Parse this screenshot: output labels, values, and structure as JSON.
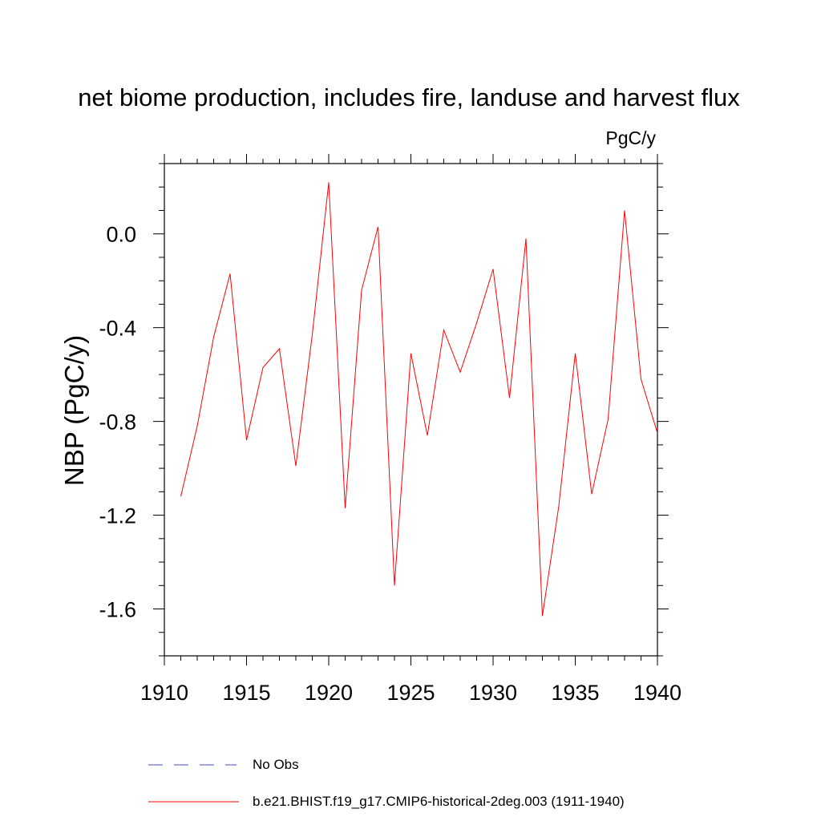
{
  "chart_data": {
    "type": "line",
    "title": "net biome production, includes fire, landuse and harvest flux",
    "units_label": "PgC/y",
    "ylabel": "NBP  (PgC/y)",
    "xlabel": "",
    "xlim": [
      1910,
      1940
    ],
    "ylim": [
      -1.8,
      0.3
    ],
    "x_ticks": [
      1910,
      1915,
      1920,
      1925,
      1930,
      1935,
      1940
    ],
    "x_tick_labels": [
      "1910",
      "1915",
      "1920",
      "1925",
      "1930",
      "1935",
      "1940"
    ],
    "y_ticks": [
      0.0,
      -0.4,
      -0.8,
      -1.2,
      -1.6
    ],
    "y_tick_labels": [
      "0.0",
      "-0.4",
      "-0.8",
      "-1.2",
      "-1.6"
    ],
    "grid": false,
    "legend_position": "bottom",
    "series": [
      {
        "name": "b.e21.BHIST.f19_g17.CMIP6-historical-2deg.003 (1911-1940)",
        "color": "#ff0000",
        "style": "solid",
        "x": [
          1911,
          1912,
          1913,
          1914,
          1915,
          1916,
          1917,
          1918,
          1919,
          1920,
          1921,
          1922,
          1923,
          1924,
          1925,
          1926,
          1927,
          1928,
          1929,
          1930,
          1931,
          1932,
          1933,
          1934,
          1935,
          1936,
          1937,
          1938,
          1939,
          1940
        ],
        "values": [
          -1.12,
          -0.82,
          -0.44,
          -0.17,
          -0.88,
          -0.57,
          -0.49,
          -0.99,
          -0.43,
          0.22,
          -1.17,
          -0.24,
          0.03,
          -1.5,
          -0.51,
          -0.86,
          -0.41,
          -0.59,
          -0.38,
          -0.15,
          -0.7,
          -0.02,
          -1.63,
          -1.16,
          -0.51,
          -1.11,
          -0.79,
          0.1,
          -0.62,
          -0.85
        ]
      }
    ],
    "legend": [
      {
        "label": "No Obs",
        "color": "#4444cc",
        "style": "dashed"
      },
      {
        "label": "b.e21.BHIST.f19_g17.CMIP6-historical-2deg.003 (1911-1940)",
        "color": "#ff0000",
        "style": "solid"
      }
    ]
  }
}
